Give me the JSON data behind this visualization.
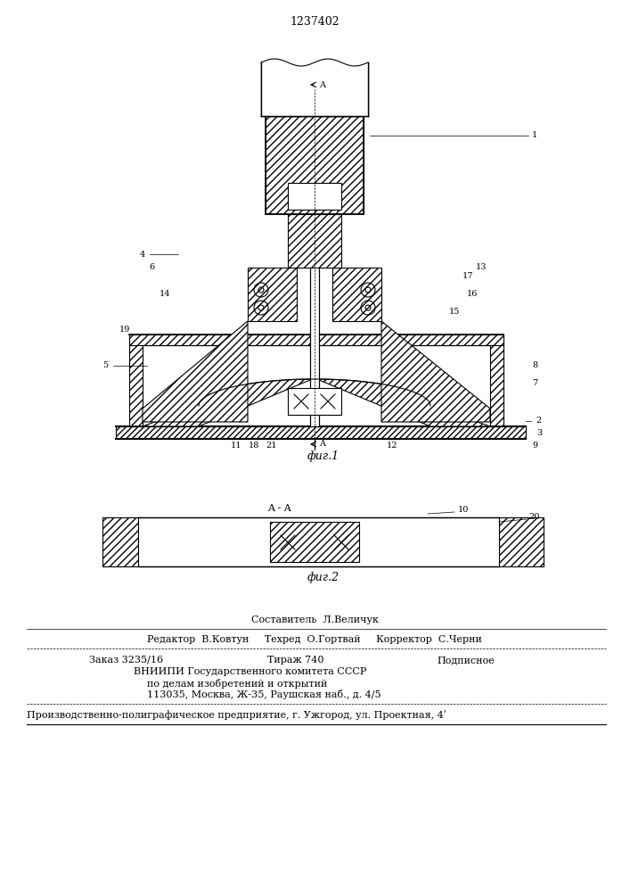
{
  "patent_number": "1237402",
  "fig1_caption": "фиг.1",
  "fig2_caption": "фиг.2",
  "section_label": "A - A",
  "arrow_label": "A",
  "bg_color": "#ffffff",
  "line_color": "#000000",
  "hatch_color": "#000000",
  "footer_lines": [
    "Составитель Л.Величук",
    "Редактор В.Ковтун     Техред О.Гортвай     Корректор С.Черни",
    "Заказ 3235/16          Тираж 740          Подписное",
    "     ВНИИПИ Государственного комитета СССР",
    "      по делам изобретений и открытий",
    "     113035, Москва, Ж-35, Раушская наб., д. 4/5",
    "Производственно-полиграфическое предприятие, г. Ужгород, ул. Проектная, 4ʹ"
  ]
}
